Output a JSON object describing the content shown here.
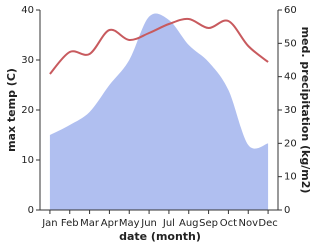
{
  "chart_data": {
    "type": "line",
    "xlabel": "date (month)",
    "ylabel": "max temp (C)",
    "y2label": "med. precipitation (kg/m2)",
    "categories": [
      "Jan",
      "Feb",
      "Mar",
      "Apr",
      "May",
      "Jun",
      "Jul",
      "Aug",
      "Sep",
      "Oct",
      "Nov",
      "Dec"
    ],
    "series": [
      {
        "type": "area",
        "axis": "y2",
        "color": "#b0bff0",
        "values": [
          22.5,
          25.5,
          29.4,
          37.5,
          45,
          58,
          57,
          49.5,
          44.4,
          36,
          19.5,
          20
        ]
      },
      {
        "type": "line",
        "color": "#c85a5e",
        "values": [
          27.2,
          31.6,
          31.2,
          36,
          34,
          35.4,
          37.2,
          38.2,
          36.4,
          37.8,
          32.8,
          29.6
        ]
      }
    ],
    "ylim": [
      0,
      40
    ],
    "yticks": [
      0,
      10,
      20,
      30,
      40
    ],
    "y2lim": [
      0,
      60
    ],
    "y2ticks": [
      0,
      10,
      20,
      30,
      40,
      50,
      60
    ]
  }
}
